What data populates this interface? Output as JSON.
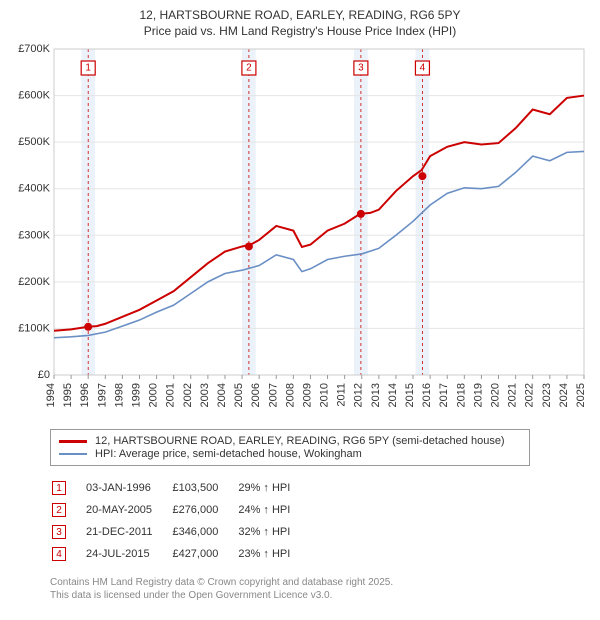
{
  "title_line1": "12, HARTSBOURNE ROAD, EARLEY, READING, RG6 5PY",
  "title_line2": "Price paid vs. HM Land Registry's House Price Index (HPI)",
  "chart": {
    "type": "line",
    "background_color": "#ffffff",
    "plot_border_color": "#cccccc",
    "grid_color": "#e5e5e5",
    "band_color": "#ecf2f9",
    "ylim": [
      0,
      700000
    ],
    "ytick_step": 100000,
    "ytick_labels": [
      "£0",
      "£100K",
      "£200K",
      "£300K",
      "£400K",
      "£500K",
      "£600K",
      "£700K"
    ],
    "xlim": [
      1994,
      2025
    ],
    "years": [
      1994,
      1995,
      1996,
      1997,
      1998,
      1999,
      2000,
      2001,
      2002,
      2003,
      2004,
      2005,
      2006,
      2007,
      2008,
      2009,
      2010,
      2011,
      2012,
      2013,
      2014,
      2015,
      2016,
      2017,
      2018,
      2019,
      2020,
      2021,
      2022,
      2023,
      2024,
      2025
    ],
    "series": [
      {
        "name": "12, HARTSBOURNE ROAD, EARLEY, READING, RG6 5PY (semi-detached house)",
        "color": "#cc0000",
        "line_width": 2.0,
        "data": [
          [
            1994,
            95000
          ],
          [
            1995,
            98000
          ],
          [
            1996,
            103500
          ],
          [
            1996.5,
            105000
          ],
          [
            1997,
            110000
          ],
          [
            1998,
            125000
          ],
          [
            1999,
            140000
          ],
          [
            2000,
            160000
          ],
          [
            2001,
            180000
          ],
          [
            2002,
            210000
          ],
          [
            2003,
            240000
          ],
          [
            2004,
            265000
          ],
          [
            2005,
            276000
          ],
          [
            2005.5,
            280000
          ],
          [
            2006,
            290000
          ],
          [
            2007,
            320000
          ],
          [
            2008,
            310000
          ],
          [
            2008.5,
            275000
          ],
          [
            2009,
            280000
          ],
          [
            2010,
            310000
          ],
          [
            2011,
            325000
          ],
          [
            2011.9,
            346000
          ],
          [
            2012.5,
            348000
          ],
          [
            2013,
            355000
          ],
          [
            2014,
            395000
          ],
          [
            2015,
            427000
          ],
          [
            2015.5,
            440000
          ],
          [
            2016,
            470000
          ],
          [
            2017,
            490000
          ],
          [
            2018,
            500000
          ],
          [
            2019,
            495000
          ],
          [
            2020,
            498000
          ],
          [
            2021,
            530000
          ],
          [
            2022,
            570000
          ],
          [
            2023,
            560000
          ],
          [
            2024,
            595000
          ],
          [
            2025,
            600000
          ]
        ],
        "points": [
          {
            "x": 1996.0,
            "y": 103500
          },
          {
            "x": 2005.4,
            "y": 276000
          },
          {
            "x": 2011.95,
            "y": 346000
          },
          {
            "x": 2015.55,
            "y": 427000
          }
        ]
      },
      {
        "name": "HPI: Average price, semi-detached house, Wokingham",
        "color": "#6a8fc5",
        "line_width": 1.6,
        "data": [
          [
            1994,
            80000
          ],
          [
            1995,
            82000
          ],
          [
            1996,
            85000
          ],
          [
            1997,
            92000
          ],
          [
            1998,
            105000
          ],
          [
            1999,
            118000
          ],
          [
            2000,
            135000
          ],
          [
            2001,
            150000
          ],
          [
            2002,
            175000
          ],
          [
            2003,
            200000
          ],
          [
            2004,
            218000
          ],
          [
            2005,
            225000
          ],
          [
            2006,
            235000
          ],
          [
            2007,
            258000
          ],
          [
            2008,
            248000
          ],
          [
            2008.5,
            222000
          ],
          [
            2009,
            228000
          ],
          [
            2010,
            248000
          ],
          [
            2011,
            255000
          ],
          [
            2012,
            260000
          ],
          [
            2013,
            272000
          ],
          [
            2014,
            300000
          ],
          [
            2015,
            330000
          ],
          [
            2016,
            365000
          ],
          [
            2017,
            390000
          ],
          [
            2018,
            402000
          ],
          [
            2019,
            400000
          ],
          [
            2020,
            405000
          ],
          [
            2021,
            435000
          ],
          [
            2022,
            470000
          ],
          [
            2023,
            460000
          ],
          [
            2024,
            478000
          ],
          [
            2025,
            480000
          ]
        ]
      }
    ],
    "markers": [
      {
        "num": "1",
        "x": 1996.0
      },
      {
        "num": "2",
        "x": 2005.4
      },
      {
        "num": "3",
        "x": 2011.95
      },
      {
        "num": "4",
        "x": 2015.55
      }
    ]
  },
  "legend": {
    "items": [
      {
        "color": "#cc0000",
        "width": 3,
        "label": "12, HARTSBOURNE ROAD, EARLEY, READING, RG6 5PY (semi-detached house)"
      },
      {
        "color": "#6a8fc5",
        "width": 2,
        "label": "HPI: Average price, semi-detached house, Wokingham"
      }
    ]
  },
  "events": [
    {
      "num": "1",
      "date": "03-JAN-1996",
      "price": "£103,500",
      "delta": "29% ↑ HPI"
    },
    {
      "num": "2",
      "date": "20-MAY-2005",
      "price": "£276,000",
      "delta": "24% ↑ HPI"
    },
    {
      "num": "3",
      "date": "21-DEC-2011",
      "price": "£346,000",
      "delta": "32% ↑ HPI"
    },
    {
      "num": "4",
      "date": "24-JUL-2015",
      "price": "£427,000",
      "delta": "23% ↑ HPI"
    }
  ],
  "footer_line1": "Contains HM Land Registry data © Crown copyright and database right 2025.",
  "footer_line2": "This data is licensed under the Open Government Licence v3.0."
}
